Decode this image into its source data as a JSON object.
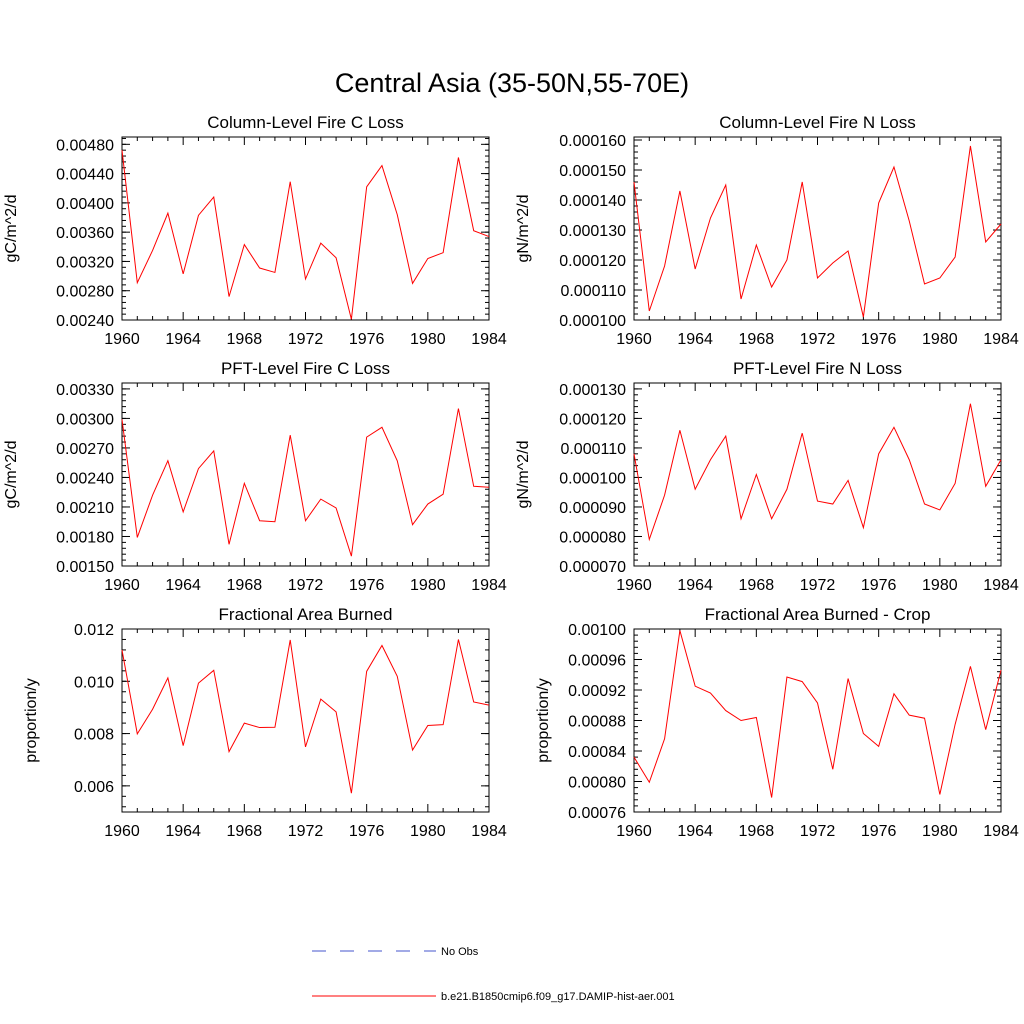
{
  "figure": {
    "title": "Central Asia (35-50N,55-70E)"
  },
  "legend": {
    "entries": [
      {
        "label": "No Obs",
        "color": "#4455cc",
        "style": "dashed"
      },
      {
        "label": "b.e21.B1850cmip6.f09_g17.DAMIP-hist-aer.001",
        "color": "#ff0000",
        "style": "solid"
      }
    ]
  },
  "chart_data": [
    {
      "type": "line",
      "title": "Column-Level Fire C Loss",
      "ylabel": "gC/m^2/d",
      "xlim": [
        1960,
        1984
      ],
      "ylim": [
        0.0024,
        0.0049
      ],
      "xticks": [
        "1960",
        "1964",
        "1968",
        "1972",
        "1976",
        "1980",
        "1984"
      ],
      "yticks": [
        0.0024,
        0.0028,
        0.0032,
        0.0036,
        0.004,
        0.0044,
        0.0048
      ],
      "ytick_labels": [
        "0.00240",
        "0.00280",
        "0.00320",
        "0.00360",
        "0.00400",
        "0.00440",
        "0.00480"
      ],
      "x": [
        1960,
        1961,
        1962,
        1963,
        1964,
        1965,
        1966,
        1967,
        1968,
        1969,
        1970,
        1971,
        1972,
        1973,
        1974,
        1975,
        1976,
        1977,
        1978,
        1979,
        1980,
        1981,
        1982,
        1983,
        1984
      ],
      "series": [
        {
          "name": "b.e21.B1850cmip6.f09_g17.DAMIP-hist-aer.001",
          "color": "#ff0000",
          "values": [
            0.00472,
            0.00291,
            0.00335,
            0.00386,
            0.00303,
            0.00383,
            0.00408,
            0.00272,
            0.00343,
            0.00311,
            0.00305,
            0.00429,
            0.00296,
            0.00345,
            0.00325,
            0.00241,
            0.00422,
            0.00451,
            0.00384,
            0.0029,
            0.00324,
            0.00332,
            0.00462,
            0.00362,
            0.00354
          ]
        }
      ]
    },
    {
      "type": "line",
      "title": "Column-Level Fire N Loss",
      "ylabel": "gN/m^2/d",
      "xlim": [
        1960,
        1984
      ],
      "ylim": [
        0.0001,
        0.000161
      ],
      "xticks": [
        "1960",
        "1964",
        "1968",
        "1972",
        "1976",
        "1980",
        "1984"
      ],
      "yticks": [
        0.0001,
        0.00011,
        0.00012,
        0.00013,
        0.00014,
        0.00015,
        0.00016
      ],
      "ytick_labels": [
        "0.000100",
        "0.000110",
        "0.000120",
        "0.000130",
        "0.000140",
        "0.000150",
        "0.000160"
      ],
      "x": [
        1960,
        1961,
        1962,
        1963,
        1964,
        1965,
        1966,
        1967,
        1968,
        1969,
        1970,
        1971,
        1972,
        1973,
        1974,
        1975,
        1976,
        1977,
        1978,
        1979,
        1980,
        1981,
        1982,
        1983,
        1984
      ],
      "series": [
        {
          "name": "b.e21.B1850cmip6.f09_g17.DAMIP-hist-aer.001",
          "color": "#ff0000",
          "values": [
            0.000146,
            0.000103,
            0.000118,
            0.000143,
            0.000117,
            0.000134,
            0.000145,
            0.000107,
            0.000125,
            0.000111,
            0.00012,
            0.000146,
            0.000114,
            0.000119,
            0.000123,
            0.000101,
            0.000139,
            0.000151,
            0.000133,
            0.000112,
            0.000114,
            0.000121,
            0.000158,
            0.000126,
            0.000132
          ]
        }
      ]
    },
    {
      "type": "line",
      "title": "PFT-Level Fire C Loss",
      "ylabel": "gC/m^2/d",
      "xlim": [
        1960,
        1984
      ],
      "ylim": [
        0.0015,
        0.00336
      ],
      "xticks": [
        "1960",
        "1964",
        "1968",
        "1972",
        "1976",
        "1980",
        "1984"
      ],
      "yticks": [
        0.0015,
        0.0018,
        0.0021,
        0.0024,
        0.0027,
        0.003,
        0.0033
      ],
      "ytick_labels": [
        "0.00150",
        "0.00180",
        "0.00210",
        "0.00240",
        "0.00270",
        "0.00300",
        "0.00330"
      ],
      "x": [
        1960,
        1961,
        1962,
        1963,
        1964,
        1965,
        1966,
        1967,
        1968,
        1969,
        1970,
        1971,
        1972,
        1973,
        1974,
        1975,
        1976,
        1977,
        1978,
        1979,
        1980,
        1981,
        1982,
        1983,
        1984
      ],
      "series": [
        {
          "name": "b.e21.B1850cmip6.f09_g17.DAMIP-hist-aer.001",
          "color": "#ff0000",
          "values": [
            0.00299,
            0.00179,
            0.00222,
            0.00257,
            0.00205,
            0.00249,
            0.00267,
            0.00172,
            0.00234,
            0.00196,
            0.00195,
            0.00283,
            0.00196,
            0.00218,
            0.00209,
            0.0016,
            0.00281,
            0.00291,
            0.00257,
            0.00192,
            0.00213,
            0.00223,
            0.0031,
            0.00231,
            0.0023
          ]
        }
      ]
    },
    {
      "type": "line",
      "title": "PFT-Level Fire N Loss",
      "ylabel": "gN/m^2/d",
      "xlim": [
        1960,
        1984
      ],
      "ylim": [
        7e-05,
        0.000132
      ],
      "xticks": [
        "1960",
        "1964",
        "1968",
        "1972",
        "1976",
        "1980",
        "1984"
      ],
      "yticks": [
        7e-05,
        8e-05,
        9e-05,
        0.0001,
        0.00011,
        0.00012,
        0.00013
      ],
      "ytick_labels": [
        "0.000070",
        "0.000080",
        "0.000090",
        "0.000100",
        "0.000110",
        "0.000120",
        "0.000130"
      ],
      "x": [
        1960,
        1961,
        1962,
        1963,
        1964,
        1965,
        1966,
        1967,
        1968,
        1969,
        1970,
        1971,
        1972,
        1973,
        1974,
        1975,
        1976,
        1977,
        1978,
        1979,
        1980,
        1981,
        1982,
        1983,
        1984
      ],
      "series": [
        {
          "name": "b.e21.B1850cmip6.f09_g17.DAMIP-hist-aer.001",
          "color": "#ff0000",
          "values": [
            0.000108,
            7.9e-05,
            9.4e-05,
            0.000116,
            9.6e-05,
            0.000106,
            0.000114,
            8.6e-05,
            0.000101,
            8.6e-05,
            9.6e-05,
            0.000115,
            9.2e-05,
            9.1e-05,
            9.9e-05,
            8.3e-05,
            0.000108,
            0.000117,
            0.000106,
            9.1e-05,
            8.9e-05,
            9.8e-05,
            0.000125,
            9.7e-05,
            0.000106
          ]
        }
      ]
    },
    {
      "type": "line",
      "title": "Fractional Area Burned",
      "ylabel": "proportion/y",
      "xlim": [
        1960,
        1984
      ],
      "ylim": [
        0.005,
        0.012
      ],
      "xticks": [
        "1960",
        "1964",
        "1968",
        "1972",
        "1976",
        "1980",
        "1984"
      ],
      "yticks": [
        0.006,
        0.008,
        0.01,
        0.012
      ],
      "ytick_labels": [
        "0.006",
        "0.008",
        "0.010",
        "0.012"
      ],
      "x": [
        1960,
        1961,
        1962,
        1963,
        1964,
        1965,
        1966,
        1967,
        1968,
        1969,
        1970,
        1971,
        1972,
        1973,
        1974,
        1975,
        1976,
        1977,
        1978,
        1979,
        1980,
        1981,
        1982,
        1983,
        1984
      ],
      "series": [
        {
          "name": "b.e21.B1850cmip6.f09_g17.DAMIP-hist-aer.001",
          "color": "#ff0000",
          "values": [
            0.0112,
            0.00799,
            0.00893,
            0.01013,
            0.00754,
            0.00993,
            0.01042,
            0.00731,
            0.0084,
            0.00823,
            0.00824,
            0.01158,
            0.00749,
            0.00932,
            0.00883,
            0.00572,
            0.01038,
            0.01137,
            0.01019,
            0.00737,
            0.00831,
            0.00834,
            0.0116,
            0.00921,
            0.00909
          ]
        }
      ]
    },
    {
      "type": "line",
      "title": "Fractional Area Burned - Crop",
      "ylabel": "proportion/y",
      "xlim": [
        1960,
        1984
      ],
      "ylim": [
        0.00076,
        0.001
      ],
      "xticks": [
        "1960",
        "1964",
        "1968",
        "1972",
        "1976",
        "1980",
        "1984"
      ],
      "yticks": [
        0.00076,
        0.0008,
        0.00084,
        0.00088,
        0.00092,
        0.00096,
        0.001
      ],
      "ytick_labels": [
        "0.00076",
        "0.00080",
        "0.00084",
        "0.00088",
        "0.00092",
        "0.00096",
        "0.00100"
      ],
      "x": [
        1960,
        1961,
        1962,
        1963,
        1964,
        1965,
        1966,
        1967,
        1968,
        1969,
        1970,
        1971,
        1972,
        1973,
        1974,
        1975,
        1976,
        1977,
        1978,
        1979,
        1980,
        1981,
        1982,
        1983,
        1984
      ],
      "series": [
        {
          "name": "b.e21.B1850cmip6.f09_g17.DAMIP-hist-aer.001",
          "color": "#ff0000",
          "values": [
            0.000832,
            0.000799,
            0.000856,
            0.000998,
            0.000925,
            0.000916,
            0.000893,
            0.00088,
            0.000884,
            0.000779,
            0.000937,
            0.000931,
            0.000903,
            0.000816,
            0.000935,
            0.000863,
            0.000846,
            0.000915,
            0.000887,
            0.000883,
            0.000783,
            0.000875,
            0.000951,
            0.000868,
            0.000946
          ]
        }
      ]
    }
  ]
}
